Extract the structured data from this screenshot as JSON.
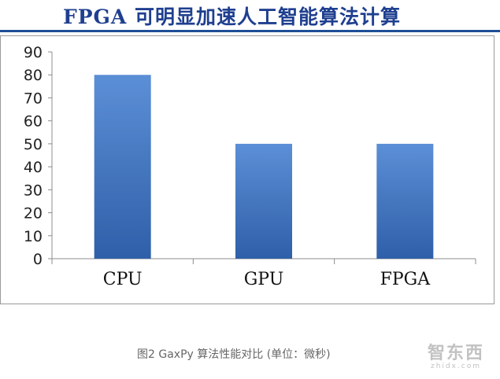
{
  "page": {
    "title": "FPGA 可明显加速人工智能算法计算",
    "caption": "图2 GaxPy 算法性能对比 (单位：微秒)",
    "watermark": {
      "main": "智东西",
      "sub": "zhidx.com"
    }
  },
  "colors": {
    "title": "#1f3f8f",
    "title_rule": "#1f4e97",
    "bar_top": "#5b8fd6",
    "bar_bottom": "#2f5fa8",
    "axis": "#8c8c8c",
    "grid": "#d9d9d9"
  },
  "chart_data": {
    "type": "bar",
    "categories": [
      "CPU",
      "GPU",
      "FPGA"
    ],
    "values": [
      80,
      50,
      50
    ],
    "title": "",
    "xlabel": "",
    "ylabel": "",
    "ylim": [
      0,
      90
    ],
    "yticks": [
      "0",
      "10",
      "20",
      "30",
      "40",
      "50",
      "60",
      "70",
      "80",
      "90"
    ],
    "grid": false,
    "legend": "none"
  }
}
